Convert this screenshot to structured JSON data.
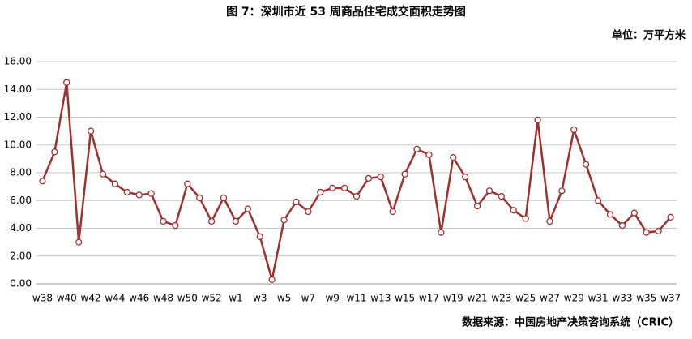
{
  "chart_data": {
    "type": "line",
    "title": "图 7：深圳市近 53 周商品住宅成交面积走势图",
    "unit": "单位：万平方米",
    "source": "数据来源：中国房地产决策咨询系统（CRIC）",
    "categories": [
      "w38",
      null,
      "w40",
      null,
      "w42",
      null,
      "w44",
      null,
      "w46",
      null,
      "w48",
      null,
      "w50",
      null,
      "w52",
      null,
      "w1",
      null,
      "w3",
      null,
      "w5",
      null,
      "w7",
      null,
      "w9",
      null,
      "w11",
      null,
      "w13",
      null,
      "w15",
      null,
      "w17",
      null,
      "w19",
      null,
      "w21",
      null,
      "w23",
      null,
      "w25",
      null,
      "w27",
      null,
      "w29",
      null,
      "w31",
      null,
      "w33",
      null,
      "w35",
      null,
      "w37"
    ],
    "series": [
      {
        "color": "#a0302e",
        "values": [
          7.4,
          9.5,
          14.5,
          3.0,
          11.0,
          7.9,
          7.2,
          6.6,
          6.4,
          6.5,
          4.5,
          4.2,
          7.2,
          6.2,
          4.5,
          6.2,
          4.5,
          5.4,
          3.4,
          0.3,
          4.6,
          5.9,
          5.2,
          6.6,
          6.9,
          6.9,
          6.3,
          7.6,
          7.7,
          5.2,
          7.9,
          9.7,
          9.3,
          3.7,
          9.1,
          7.7,
          5.6,
          6.7,
          6.3,
          5.3,
          4.7,
          11.8,
          4.5,
          6.7,
          11.1,
          8.6,
          6.0,
          5.0,
          4.2,
          5.1,
          3.7,
          3.8,
          4.8
        ]
      }
    ],
    "ylim": [
      0,
      16
    ],
    "yticks": [
      {
        "value": 0,
        "label": "0.00"
      },
      {
        "value": 2,
        "label": "2.00"
      },
      {
        "value": 4,
        "label": "4.00"
      },
      {
        "value": 6,
        "label": "6.00"
      },
      {
        "value": 8,
        "label": "8.00"
      },
      {
        "value": 10,
        "label": "10.00"
      },
      {
        "value": 12,
        "label": "12.00"
      },
      {
        "value": 14,
        "label": "14.00"
      },
      {
        "value": 16,
        "label": "16.00"
      }
    ],
    "grid": true
  }
}
